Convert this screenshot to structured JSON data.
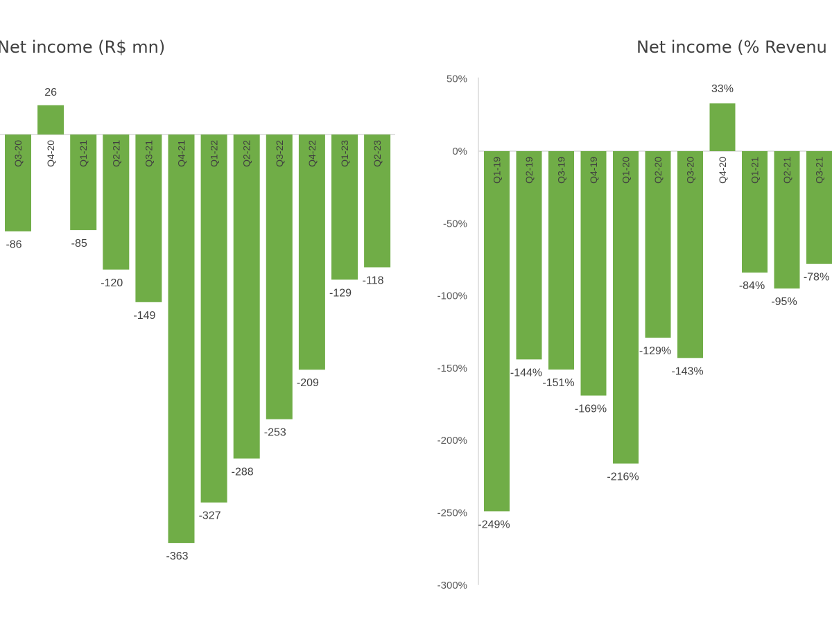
{
  "chart_data": [
    {
      "type": "bar",
      "title": "Net income (R$ mn)",
      "categories": [
        "Q3-20",
        "Q4-20",
        "Q1-21",
        "Q2-21",
        "Q3-21",
        "Q4-21",
        "Q1-22",
        "Q2-22",
        "Q3-22",
        "Q4-22",
        "Q1-23",
        "Q2-23"
      ],
      "values": [
        -86,
        26,
        -85,
        -120,
        -149,
        -363,
        -327,
        -288,
        -253,
        -209,
        -129,
        -118
      ],
      "data_labels": [
        "-86",
        "26",
        "-85",
        "-120",
        "-149",
        "-363",
        "-327",
        "-288",
        "-253",
        "-209",
        "-129",
        "-118"
      ],
      "bar_color": "#70ad47",
      "xlabel": "",
      "ylabel": "",
      "grid": false,
      "ylim": [
        -385,
        60
      ]
    },
    {
      "type": "bar",
      "title": "Net income (% Revenu",
      "categories": [
        "Q1-19",
        "Q2-19",
        "Q3-19",
        "Q4-19",
        "Q1-20",
        "Q2-20",
        "Q3-20",
        "Q4-20",
        "Q1-21",
        "Q2-21",
        "Q3-21"
      ],
      "values": [
        -249,
        -144,
        -151,
        -169,
        -216,
        -129,
        -143,
        33,
        -84,
        -95,
        -78
      ],
      "data_labels": [
        "-249%",
        "-144%",
        "-151%",
        "-169%",
        "-216%",
        "-129%",
        "-143%",
        "33%",
        "-84%",
        "-95%",
        "-78%"
      ],
      "y_ticks": [
        50,
        0,
        -50,
        -100,
        -150,
        -200,
        -250,
        -300
      ],
      "y_tick_labels": [
        "50%",
        "0%",
        "-50%",
        "-100%",
        "-150%",
        "-200%",
        "-250%",
        "-300%"
      ],
      "bar_color": "#70ad47",
      "xlabel": "",
      "ylabel": "",
      "grid": false,
      "ylim": [
        -300,
        50
      ]
    }
  ]
}
